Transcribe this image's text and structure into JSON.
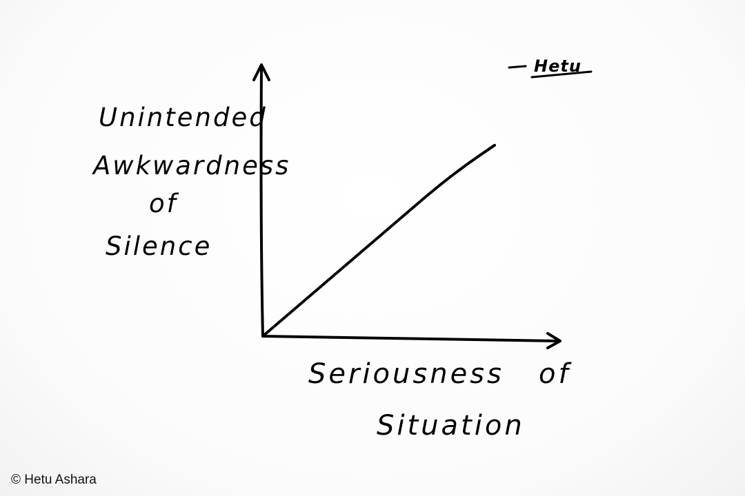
{
  "chart_data": {
    "type": "line",
    "title": "",
    "xlabel": "Seriousness of Situation",
    "ylabel_lines": [
      "Unintended",
      "Awkwardness",
      "of",
      "Silence"
    ],
    "xlabel_lines": [
      "Seriousness   of",
      "Situation"
    ],
    "grid": false,
    "legend": "none",
    "xlim": [
      0,
      1
    ],
    "ylim": [
      0,
      1
    ],
    "series": [
      {
        "color": "#000000",
        "x": [
          0,
          0.1,
          0.2,
          0.3,
          0.4,
          0.5,
          0.6,
          0.7,
          0.8
        ],
        "y": [
          0,
          0.1,
          0.2,
          0.3,
          0.4,
          0.5,
          0.6,
          0.69,
          0.77
        ]
      }
    ]
  },
  "signature": "Hetu",
  "copyright": "© Hetu Ashara",
  "colors": {
    "ink": "#000000",
    "paper": "#ffffff"
  }
}
